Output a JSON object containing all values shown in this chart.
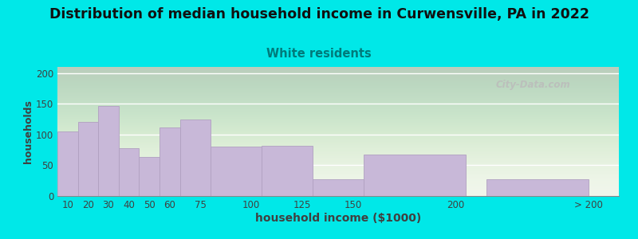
{
  "title": "Distribution of median household income in Curwensville, PA in 2022",
  "subtitle": "White residents",
  "xlabel": "household income ($1000)",
  "ylabel": "households",
  "bar_labels": [
    "10",
    "20",
    "30",
    "40",
    "50",
    "60",
    "75",
    "100",
    "125",
    "150",
    "200",
    "> 200"
  ],
  "bar_heights": [
    105,
    120,
    147,
    78,
    63,
    112,
    125,
    80,
    82,
    27,
    68,
    27
  ],
  "bar_color": "#c8b8d8",
  "bar_edgecolor": "#b0a0c0",
  "background_outer": "#00e8e8",
  "background_inner": "#f0f5ea",
  "title_fontsize": 12.5,
  "subtitle_fontsize": 10.5,
  "subtitle_color": "#007a7a",
  "ylabel_fontsize": 9,
  "xlabel_fontsize": 10,
  "tick_fontsize": 8.5,
  "ylim": [
    0,
    210
  ],
  "yticks": [
    0,
    50,
    100,
    150,
    200
  ],
  "watermark": "City-Data.com",
  "bar_lefts": [
    5,
    15,
    25,
    35,
    45,
    55,
    65,
    80,
    105,
    130,
    155,
    215
  ],
  "bar_widths": [
    10,
    10,
    10,
    10,
    10,
    10,
    15,
    25,
    25,
    25,
    50,
    50
  ],
  "xtick_positions": [
    10,
    20,
    30,
    40,
    50,
    60,
    75,
    100,
    125,
    150,
    200,
    265
  ],
  "xlim": [
    5,
    280
  ]
}
